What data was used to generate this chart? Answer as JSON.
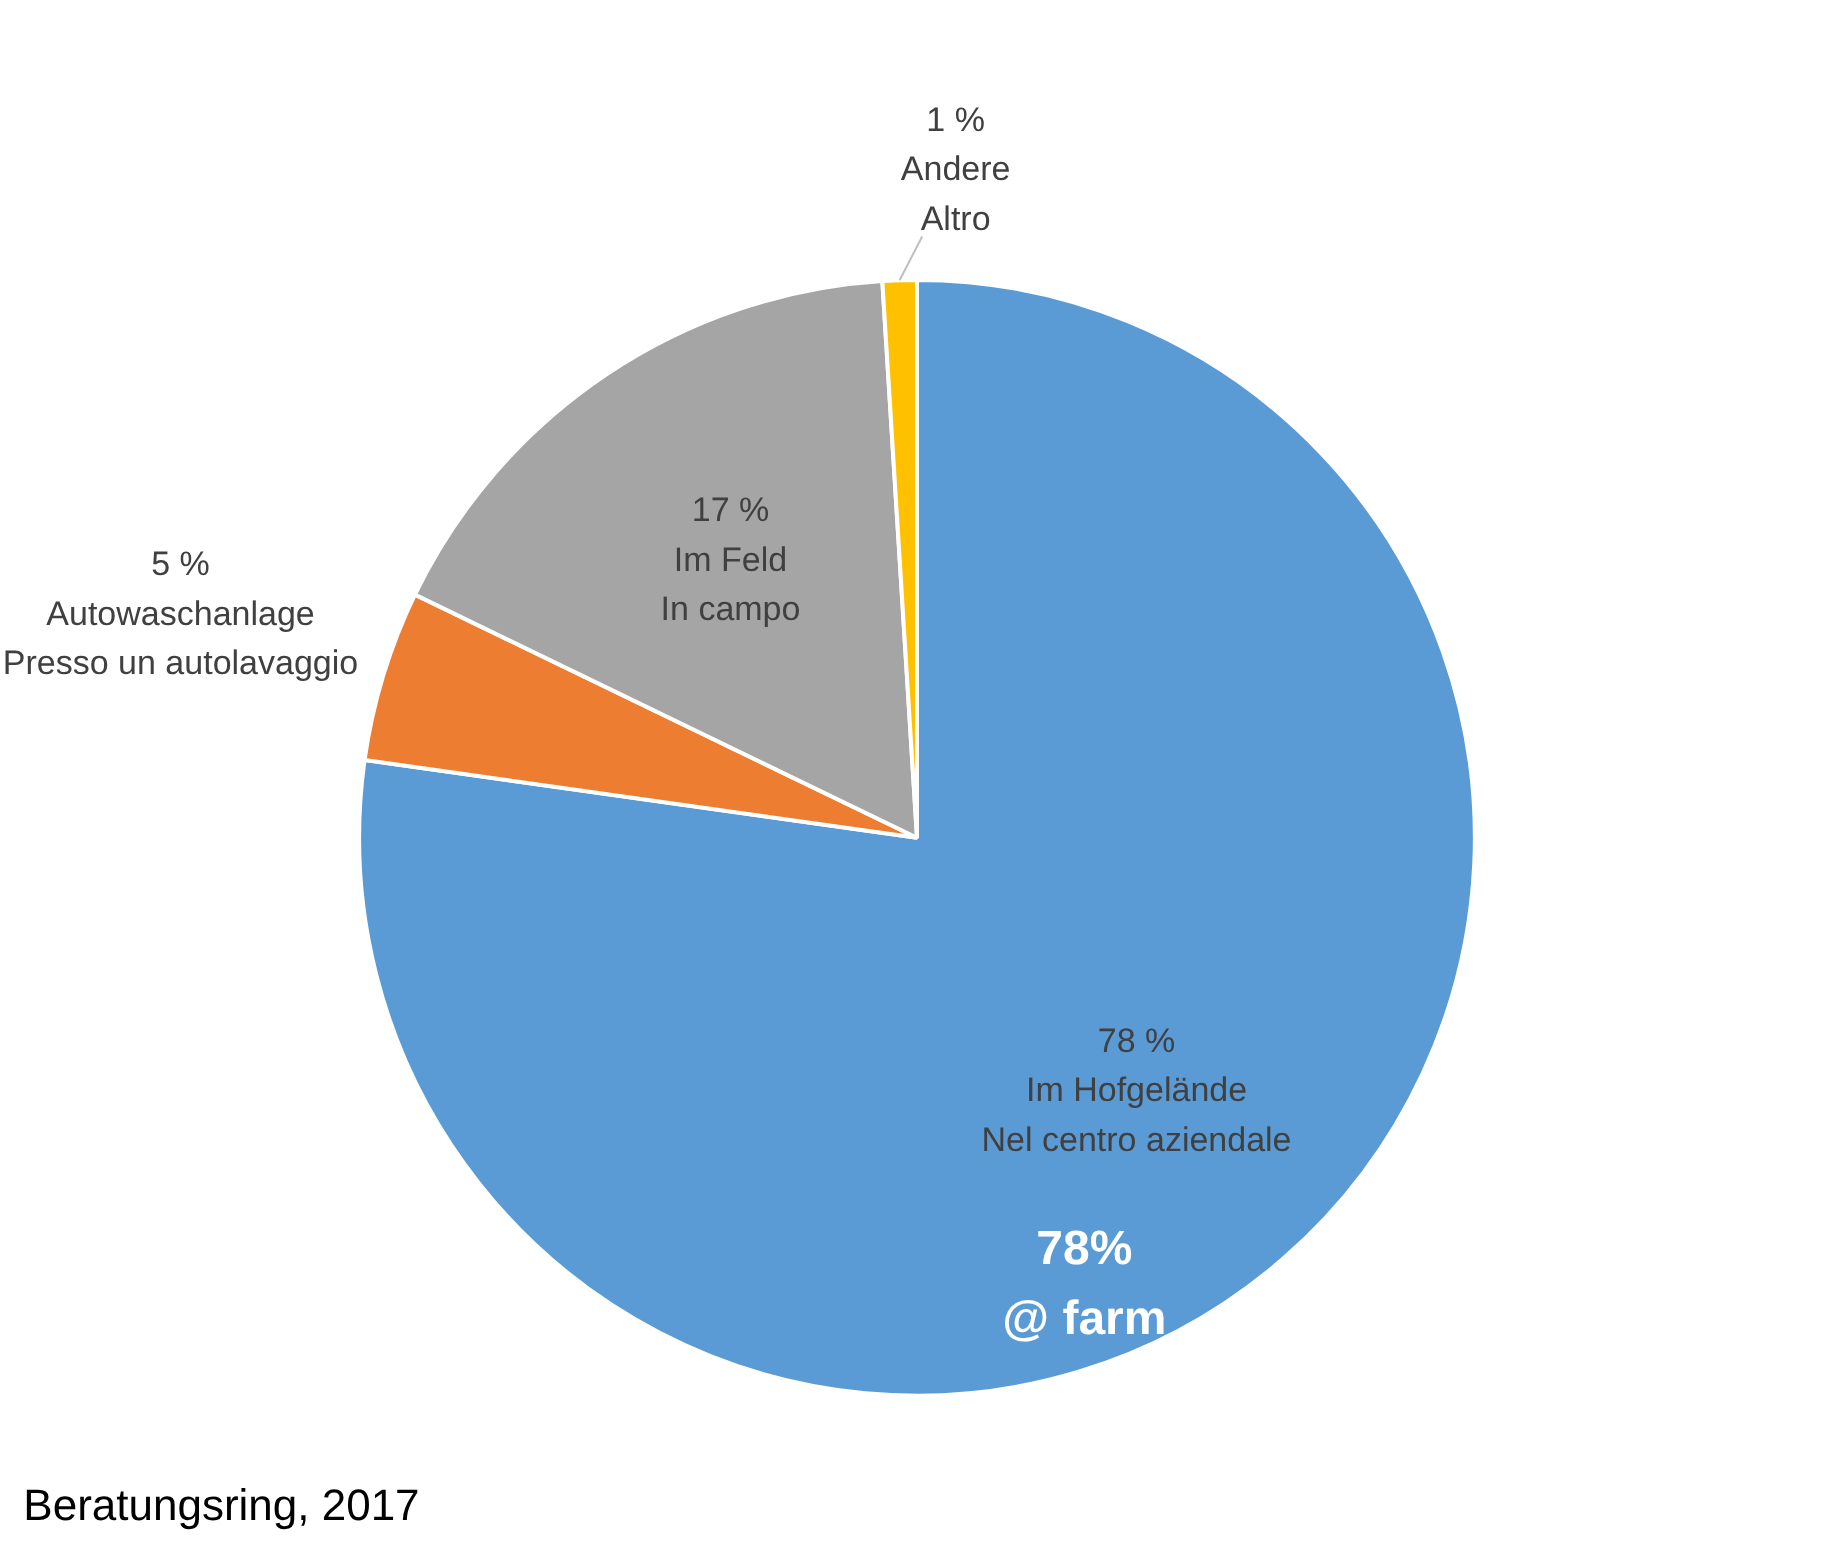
{
  "chart_data": {
    "type": "pie",
    "categories": [
      "Im Hofgelände\nNel centro aziendale",
      "Autowaschanlage\nPresso un autolavaggio",
      "Im Feld\nIn campo",
      "Andere\nAltro"
    ],
    "values": [
      78,
      5,
      17,
      1
    ],
    "colors": [
      "#5b9bd5",
      "#ed7d31",
      "#a5a5a5",
      "#ffc000"
    ],
    "value_labels": [
      "78 %",
      "5 %",
      "17 %",
      "1 %"
    ],
    "annotations": [
      "78%\n@ farm",
      "Beratungsring, 2017"
    ]
  }
}
